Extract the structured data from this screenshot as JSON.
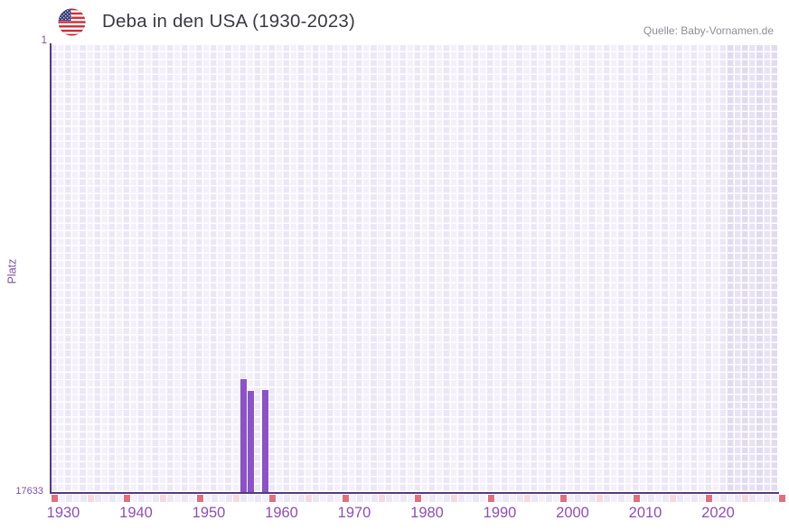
{
  "header": {
    "title": "Deba in den USA (1930-2023)",
    "source": "Quelle: Baby-Vornamen.de",
    "flag_icon": "usa-flag-icon"
  },
  "chart_data": {
    "type": "bar",
    "title": "Deba in den USA (1930-2023)",
    "xlabel": "",
    "ylabel": "Platz",
    "y_axis": {
      "top_tick_label": "1",
      "bottom_tick_label": "17633",
      "min": 1,
      "max": 17633,
      "inverted": true
    },
    "x_axis": {
      "start_year": 1930,
      "end_year": 2029,
      "strip_end_year": 2030,
      "ticks": [
        {
          "year": 1930,
          "label": "1930"
        },
        {
          "year": 1940,
          "label": "1940"
        },
        {
          "year": 1950,
          "label": "1950"
        },
        {
          "year": 1960,
          "label": "1960"
        },
        {
          "year": 1970,
          "label": "1970"
        },
        {
          "year": 1980,
          "label": "1980"
        },
        {
          "year": 1990,
          "label": "1990"
        },
        {
          "year": 2000,
          "label": "2000"
        },
        {
          "year": 2010,
          "label": "2010"
        },
        {
          "year": 2020,
          "label": "2020"
        }
      ],
      "subtick_interval": 5
    },
    "future_zone_start_year": 2023,
    "grid": "waffle",
    "legend": null,
    "points": [
      {
        "year": 1956,
        "rank": 13180
      },
      {
        "year": 1957,
        "rank": 13640
      },
      {
        "year": 1959,
        "rank": 13600
      }
    ],
    "colors": {
      "bar": "#8b53c4",
      "axis": "#563a7e",
      "x_tick_label": "#8d50ae",
      "y_label": "#7b51a1",
      "title": "#3b3a44",
      "source": "#8e8e96",
      "grid_cell_a": "#ece7f6",
      "grid_cell_b": "#f3f0fb",
      "future_cell_a": "#e1dbef",
      "future_cell_b": "#e8e2f4",
      "decade_tick_cell": "#e0707e",
      "half_decade_tick_cell": "#f6d9e0",
      "flag_red": "#cf2e38",
      "flag_blue": "#323878"
    }
  }
}
